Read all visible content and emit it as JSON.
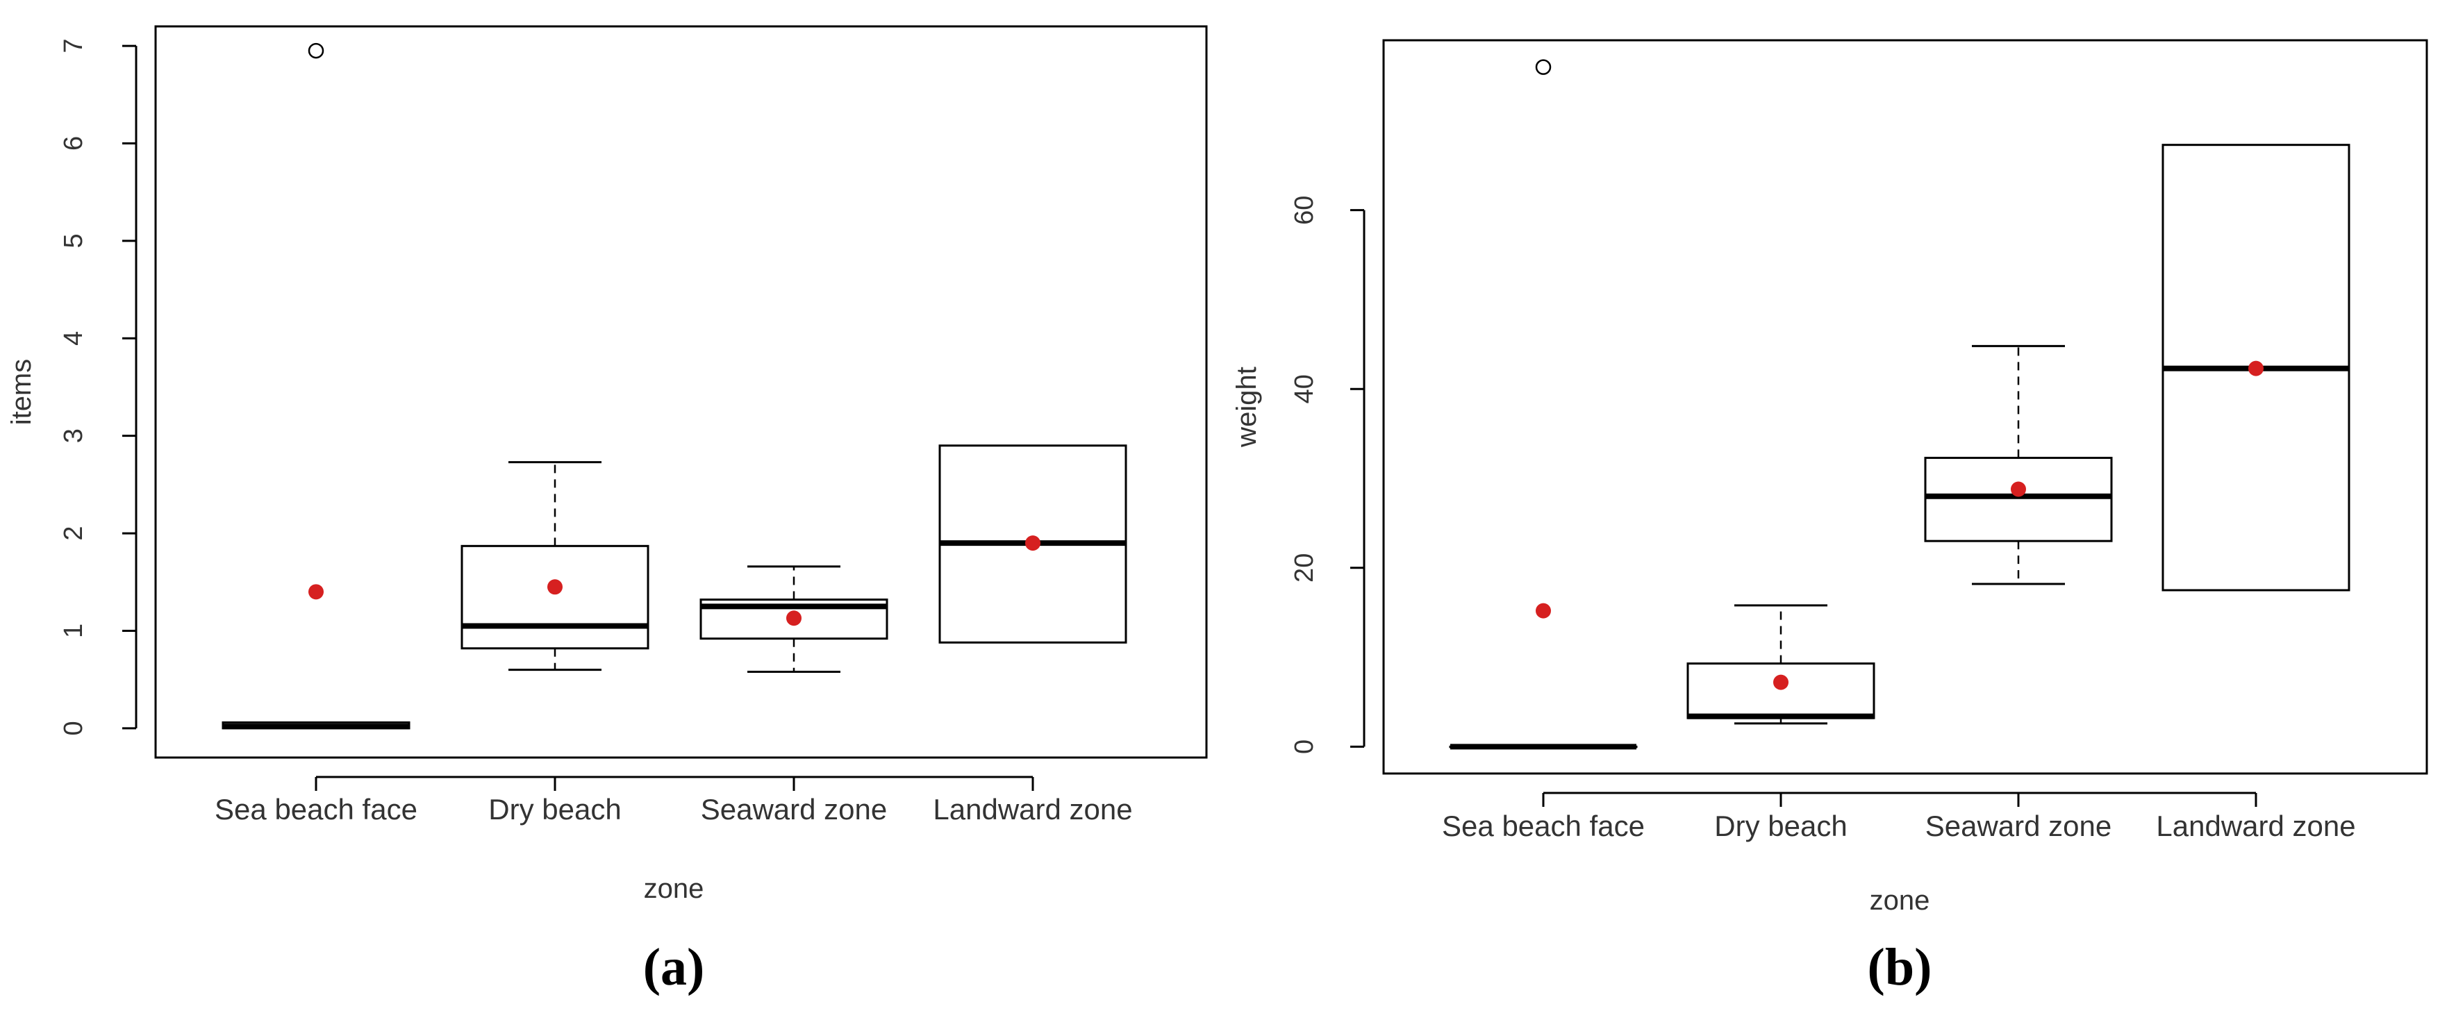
{
  "chart_data": [
    {
      "type": "box",
      "panel_label": "(a)",
      "xlabel": "zone",
      "ylabel": "items",
      "ylim": [
        -0.3,
        7.2
      ],
      "yticks": [
        0,
        1,
        2,
        3,
        4,
        5,
        6,
        7
      ],
      "ytick_labels": [
        "0",
        "1",
        "2",
        "3",
        "4",
        "5",
        "6",
        "7"
      ],
      "categories": [
        "Sea beach face",
        "Dry beach",
        "Seaward zone",
        "Landward zone"
      ],
      "boxes": [
        {
          "whisker_low": 0,
          "q1": 0,
          "median": 0.02,
          "q3": 0.06,
          "whisker_high": 0.06,
          "mean": 1.4,
          "outliers": [
            6.95
          ]
        },
        {
          "whisker_low": 0.6,
          "q1": 0.82,
          "median": 1.05,
          "q3": 1.87,
          "whisker_high": 2.73,
          "mean": 1.45,
          "outliers": []
        },
        {
          "whisker_low": 0.58,
          "q1": 0.92,
          "median": 1.25,
          "q3": 1.32,
          "whisker_high": 1.66,
          "mean": 1.13,
          "outliers": []
        },
        {
          "whisker_low": 0.88,
          "q1": 0.88,
          "median": 1.9,
          "q3": 2.9,
          "whisker_high": 2.9,
          "mean": 1.9,
          "outliers": []
        }
      ],
      "colors": {
        "mean": "#d62020",
        "box": "#000000"
      }
    },
    {
      "type": "box",
      "panel_label": "(b)",
      "xlabel": "zone",
      "ylabel": "weight",
      "ylim": [
        -3,
        79
      ],
      "yticks": [
        0,
        20,
        40,
        60
      ],
      "ytick_labels": [
        "0",
        "20",
        "40",
        "60"
      ],
      "categories": [
        "Sea beach face",
        "Dry beach",
        "Seaward zone",
        "Landward zone"
      ],
      "boxes": [
        {
          "whisker_low": 0,
          "q1": 0,
          "median": 0,
          "q3": 0,
          "whisker_high": 0,
          "mean": 15.2,
          "outliers": [
            76
          ]
        },
        {
          "whisker_low": 2.6,
          "q1": 3.2,
          "median": 3.4,
          "q3": 9.3,
          "whisker_high": 15.8,
          "mean": 7.2,
          "outliers": []
        },
        {
          "whisker_low": 18.2,
          "q1": 23,
          "median": 28,
          "q3": 32.3,
          "whisker_high": 44.8,
          "mean": 28.8,
          "outliers": []
        },
        {
          "whisker_low": 17.5,
          "q1": 17.5,
          "median": 42.3,
          "q3": 67.3,
          "whisker_high": 67.3,
          "mean": 42.3,
          "outliers": []
        }
      ],
      "colors": {
        "mean": "#d62020",
        "box": "#000000"
      }
    }
  ]
}
